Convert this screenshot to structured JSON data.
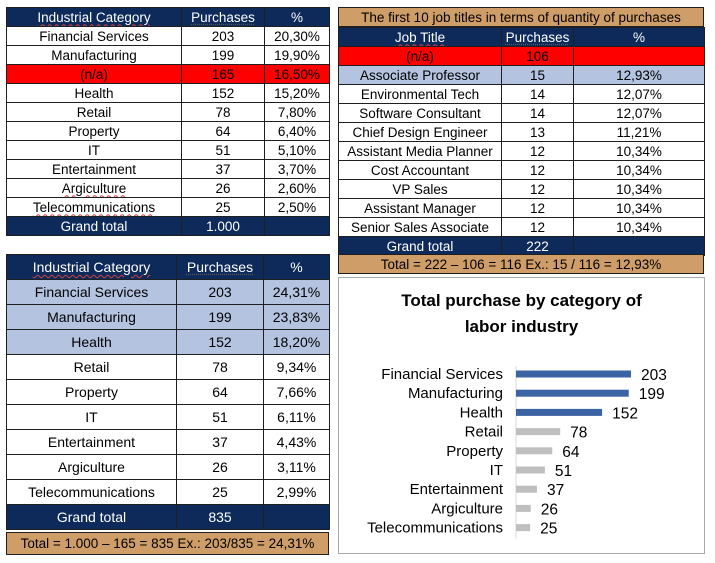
{
  "table1": {
    "headers": [
      "Industrial Category",
      "Purchases",
      "%"
    ],
    "rows": [
      [
        "Financial Services",
        "203",
        "20,30%"
      ],
      [
        "Manufacturing",
        "199",
        "19,90%"
      ],
      [
        "(n/a)",
        "165",
        "16,50%"
      ],
      [
        "Health",
        "152",
        "15,20%"
      ],
      [
        "Retail",
        "78",
        "7,80%"
      ],
      [
        "Property",
        "64",
        "6,40%"
      ],
      [
        "IT",
        "51",
        "5,10%"
      ],
      [
        "Entertainment",
        "37",
        "3,70%"
      ],
      [
        "Argiculture",
        "26",
        "2,60%"
      ],
      [
        "Telecommunications",
        "25",
        "2,50%"
      ]
    ],
    "total": [
      "Grand total",
      "1.000",
      ""
    ]
  },
  "table2": {
    "caption": "The first 10 job titles in terms of quantity of purchases",
    "headers": [
      "Job Title",
      "Purchases",
      "%"
    ],
    "na_row": [
      "(n/a)",
      "106",
      ""
    ],
    "rows": [
      [
        "Associate Professor",
        "15",
        "12,93%"
      ],
      [
        "Environmental Tech",
        "14",
        "12,07%"
      ],
      [
        "Software Consultant",
        "14",
        "12,07%"
      ],
      [
        "Chief Design Engineer",
        "13",
        "11,21%"
      ],
      [
        "Assistant Media Planner",
        "12",
        "10,34%"
      ],
      [
        "Cost Accountant",
        "12",
        "10,34%"
      ],
      [
        "VP Sales",
        "12",
        "10,34%"
      ],
      [
        "Assistant Manager",
        "12",
        "10,34%"
      ],
      [
        "Senior Sales Associate",
        "12",
        "10,34%"
      ]
    ],
    "total": [
      "Grand total",
      "222",
      ""
    ],
    "note": "Total = 222 – 106 = 116  Ex.: 15 / 116 = 12,93%"
  },
  "table3": {
    "headers": [
      "Industrial Category",
      "Purchases",
      "%"
    ],
    "rows": [
      [
        "Financial Services",
        "203",
        "24,31%"
      ],
      [
        "Manufacturing",
        "199",
        "23,83%"
      ],
      [
        "Health",
        "152",
        "18,20%"
      ],
      [
        "Retail",
        "78",
        "9,34%"
      ],
      [
        "Property",
        "64",
        "7,66%"
      ],
      [
        "IT",
        "51",
        "6,11%"
      ],
      [
        "Entertainment",
        "37",
        "4,43%"
      ],
      [
        "Argiculture",
        "26",
        "3,11%"
      ],
      [
        "Telecommunications",
        "25",
        "2,99%"
      ]
    ],
    "total": [
      "Grand total",
      "835",
      ""
    ],
    "note": "Total = 1.000 – 165 = 835 Ex.: 203/835 = 24,31%"
  },
  "chart_data": {
    "type": "bar",
    "orientation": "horizontal",
    "title": "Total purchase by category of labor industry",
    "title_lines": [
      "Total purchase by category of",
      "labor industry"
    ],
    "categories": [
      "Financial Services",
      "Manufacturing",
      "Health",
      "Retail",
      "Property",
      "IT",
      "Entertainment",
      "Argiculture",
      "Telecommunications"
    ],
    "values": [
      203,
      199,
      152,
      78,
      64,
      51,
      37,
      26,
      25
    ],
    "data_labels": true,
    "grid": false,
    "colors": {
      "top3": "#3c63a3",
      "others": "#bfbfbf"
    }
  },
  "colors": {
    "header_navy": "#0d2a5a",
    "highlight_red": "#ff0000",
    "row_blue": "#b4c3e0",
    "note_tan": "#cf9e68"
  }
}
